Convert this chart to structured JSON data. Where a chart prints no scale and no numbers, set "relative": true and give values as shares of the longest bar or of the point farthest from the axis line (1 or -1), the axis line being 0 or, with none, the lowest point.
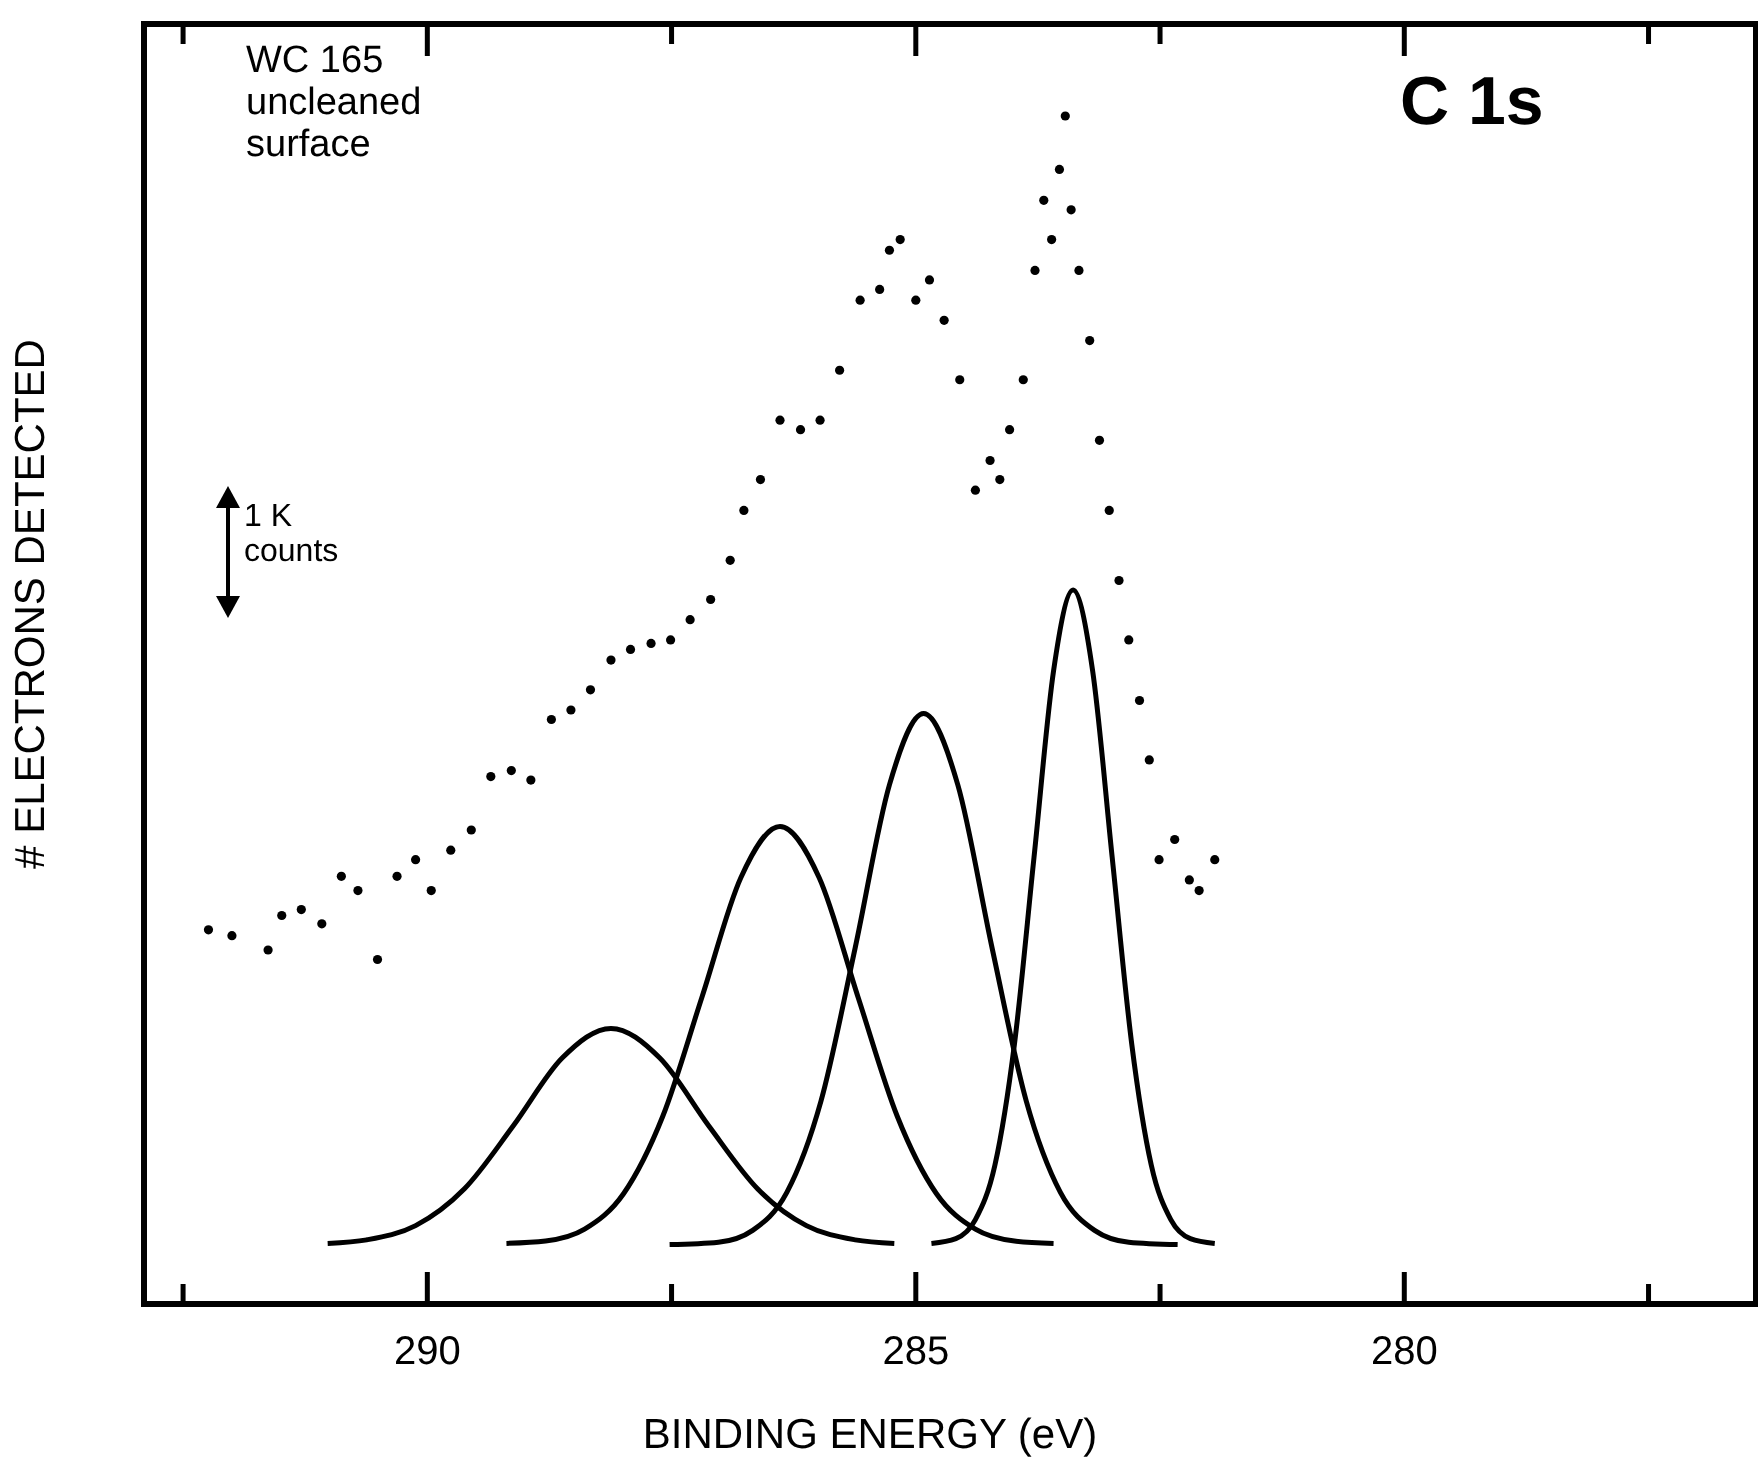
{
  "chart_data": {
    "type": "scatter",
    "xlabel": "BINDING ENERGY (eV)",
    "ylabel": "# ELECTRONS DETECTED",
    "relative": true,
    "xlim": [
      292.9,
      276.4
    ],
    "xticks": [
      {
        "value": 292.5,
        "label": null
      },
      290,
      {
        "value": 287.5,
        "label": null
      },
      285,
      {
        "value": 282.5,
        "label": null
      },
      280,
      {
        "value": 277.5,
        "label": null
      }
    ],
    "tick_labels": "x",
    "grid": false,
    "annotations": [
      "WC 165 uncleaned surface",
      "C 1s",
      "1 K counts"
    ],
    "series": [
      {
        "marker": "circle",
        "color": "#000000",
        "x": [
          292.24,
          292.0,
          291.63,
          291.49,
          291.29,
          291.08,
          290.88,
          290.71,
          290.51,
          290.31,
          290.12,
          289.96,
          289.76,
          289.55,
          289.35,
          289.14,
          288.94,
          288.73,
          288.53,
          288.33,
          288.12,
          287.92,
          287.71,
          287.51,
          287.31,
          287.1,
          286.9,
          286.76,
          286.59,
          286.39,
          286.18,
          285.98,
          285.78,
          285.57,
          285.37,
          285.27,
          285.16,
          285.0,
          284.86,
          284.71,
          284.55,
          284.39,
          284.24,
          284.14,
          284.04,
          283.9,
          283.78,
          283.69,
          283.61,
          283.53,
          283.47,
          283.41,
          283.33,
          283.22,
          283.12,
          283.02,
          282.92,
          282.82,
          282.71,
          282.61,
          282.51,
          282.35,
          282.2,
          282.1,
          281.94
        ],
        "values": [
          0.315,
          0.31,
          0.298,
          0.327,
          0.332,
          0.32,
          0.36,
          0.348,
          0.29,
          0.36,
          0.374,
          0.348,
          0.382,
          0.399,
          0.444,
          0.449,
          0.441,
          0.492,
          0.5,
          0.517,
          0.542,
          0.551,
          0.556,
          0.559,
          0.576,
          0.593,
          0.626,
          0.668,
          0.694,
          0.744,
          0.736,
          0.744,
          0.786,
          0.845,
          0.854,
          0.887,
          0.896,
          0.845,
          0.862,
          0.828,
          0.778,
          0.685,
          0.71,
          0.694,
          0.736,
          0.778,
          0.87,
          0.929,
          0.896,
          0.955,
          1.0,
          0.921,
          0.87,
          0.811,
          0.727,
          0.668,
          0.609,
          0.559,
          0.508,
          0.458,
          0.374,
          0.391,
          0.357,
          0.348,
          0.374
        ]
      },
      {
        "type": "line",
        "color": "#000000",
        "x": [
          291.02,
          290.62,
          290.12,
          289.62,
          289.12,
          288.62,
          288.12,
          287.62,
          287.12,
          286.62,
          286.12,
          285.62,
          285.22
        ],
        "values": [
          0.051,
          0.054,
          0.066,
          0.097,
          0.15,
          0.207,
          0.232,
          0.207,
          0.15,
          0.097,
          0.066,
          0.054,
          0.051
        ]
      },
      {
        "type": "line",
        "color": "#000000",
        "x": [
          289.19,
          288.79,
          288.39,
          287.99,
          287.59,
          287.19,
          286.79,
          286.39,
          285.99,
          285.59,
          285.19,
          284.79,
          284.39,
          283.99,
          283.59
        ],
        "values": [
          0.051,
          0.053,
          0.063,
          0.093,
          0.158,
          0.258,
          0.359,
          0.402,
          0.359,
          0.258,
          0.158,
          0.093,
          0.063,
          0.053,
          0.051
        ]
      },
      {
        "type": "line",
        "color": "#000000",
        "x": [
          287.52,
          287.02,
          286.67,
          286.32,
          285.97,
          285.62,
          285.27,
          284.92,
          284.57,
          284.22,
          283.87,
          283.52,
          283.17,
          282.82,
          282.32
        ],
        "values": [
          0.05,
          0.052,
          0.062,
          0.094,
          0.171,
          0.3,
          0.437,
          0.497,
          0.437,
          0.3,
          0.171,
          0.094,
          0.062,
          0.052,
          0.05
        ]
      },
      {
        "type": "line",
        "color": "#000000",
        "x": [
          284.84,
          284.59,
          284.39,
          284.19,
          283.99,
          283.79,
          283.59,
          283.39,
          283.19,
          282.99,
          282.79,
          282.59,
          282.39,
          282.19,
          281.94
        ],
        "values": [
          0.051,
          0.055,
          0.071,
          0.117,
          0.219,
          0.376,
          0.533,
          0.601,
          0.533,
          0.376,
          0.219,
          0.117,
          0.071,
          0.055,
          0.051
        ]
      }
    ]
  }
}
